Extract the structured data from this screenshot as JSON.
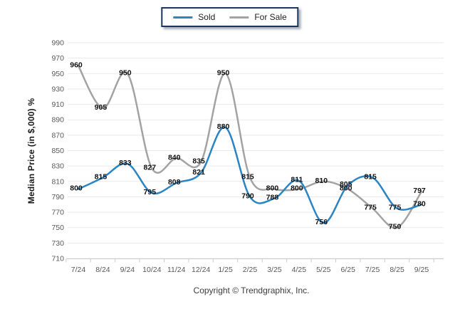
{
  "footer": {
    "text": "Copyright © Trendgraphix, Inc."
  },
  "chart_data": {
    "type": "line",
    "title": "",
    "categories": [
      "7/24",
      "8/24",
      "9/24",
      "10/24",
      "11/24",
      "12/24",
      "1/25",
      "2/25",
      "3/25",
      "4/25",
      "5/25",
      "6/25",
      "7/25",
      "8/25",
      "9/25"
    ],
    "series": [
      {
        "name": "Sold",
        "color": "#2A85C4",
        "values": [
          800,
          815,
          833,
          795,
          808,
          821,
          880,
          790,
          788,
          811,
          756,
          805,
          815,
          775,
          780
        ]
      },
      {
        "name": "For Sale",
        "color": "#A3A3A3",
        "values": [
          960,
          905,
          950,
          827,
          840,
          835,
          950,
          815,
          800,
          800,
          810,
          800,
          775,
          750,
          797
        ]
      }
    ],
    "xlabel": "",
    "ylabel": "Median Price (in $,000) %",
    "ylim": [
      710,
      990
    ],
    "ytick_step": 20,
    "grid": true,
    "smooth": true,
    "show_data_labels": true,
    "legend_position": "top-center"
  },
  "colors": {
    "grid": "#EAEAEA",
    "axis_line": "#CCCCCC",
    "axis_text": "#595959",
    "data_label": "#111111",
    "legend_border": "#17375D"
  }
}
